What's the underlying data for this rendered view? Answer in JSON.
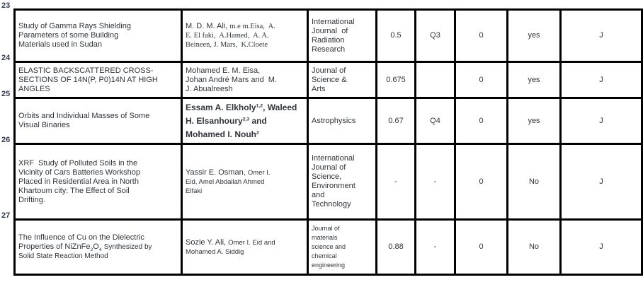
{
  "theme": {
    "background": "#ffffff",
    "text_color": "#30343a",
    "border_color": "#000000",
    "row_number_color": "#333b52"
  },
  "table": {
    "column_keys": [
      "title",
      "authors",
      "journal",
      "impact_factor",
      "quartile",
      "citations",
      "indexed",
      "pub_type"
    ],
    "rows": [
      {
        "num": "23",
        "title": [
          {
            "t": "Study of Gamma Rays Shielding\nParameters of some Building\nMaterials used in Sudan",
            "f": "s"
          }
        ],
        "authors": [
          {
            "t": "M. D. M. Ali, ",
            "f": "s"
          },
          {
            "t": "m.e m.Eisa,  A.\nE. El faki,  A.Hamed,  A. A.\nBeineen, J. Mars,  K.Cloete",
            "f": "sf"
          }
        ],
        "journal": [
          {
            "t": "International\nJournal  of\nRadiation\nResearch",
            "f": "s"
          }
        ],
        "impact_factor": "0.5",
        "quartile": "Q3",
        "citations": "0",
        "indexed": "yes",
        "pub_type": "J"
      },
      {
        "num": "24",
        "title": [
          {
            "t": "ELASTIC BACKSCATTERED CROSS-\nSECTIONS OF 14N(P, P0)14N AT HIGH\nANGLES",
            "f": "s"
          }
        ],
        "authors": [
          {
            "t": "Mohamed E. M. Eisa,\nJohan André Mars and  M.\nJ. Abualreesh",
            "f": "s"
          }
        ],
        "journal": [
          {
            "t": "Journal of\nScience &\nArts",
            "f": "s"
          }
        ],
        "impact_factor": "0.675",
        "quartile": "",
        "citations": "0",
        "indexed": "yes",
        "pub_type": "J"
      },
      {
        "num": "25",
        "title": [
          {
            "t": "Orbits and Individual Masses of Some\nVisual Binaries",
            "f": "s"
          }
        ],
        "authors": [
          {
            "t": "Essam A. Elkholy",
            "f": "b"
          },
          {
            "t": "1,2",
            "f": "b",
            "sup": true
          },
          {
            "t": ", Waleed\nH. Elsanhoury",
            "f": "b"
          },
          {
            "t": "2,3",
            "f": "b",
            "sup": true
          },
          {
            "t": " and\nMohamed I. Nouh",
            "f": "b"
          },
          {
            "t": "2",
            "f": "b",
            "sup": true
          }
        ],
        "journal": [
          {
            "t": "Astrophysics",
            "f": "s"
          }
        ],
        "impact_factor": "0.67",
        "quartile": "Q4",
        "citations": "0",
        "indexed": "yes",
        "pub_type": "J"
      },
      {
        "num": "26",
        "title": [
          {
            "t": "XRF  Study of Polluted Soils in the\nVicinity of Cars Batteries Workshop\nPlaced in Residential Area in North\nKhartoum city: The Effect of Soil\nDrifting.",
            "f": "s"
          }
        ],
        "authors": [
          {
            "t": "Yassir E. Osman, ",
            "f": "s"
          },
          {
            "t": "Omer I.\nEid, Amel Abdallah Ahmed\nElfaki",
            "f": "sm"
          }
        ],
        "journal": [
          {
            "t": "International\nJournal of\nScience,\nEnvironment\nand\nTechnology",
            "f": "s"
          }
        ],
        "impact_factor": "-",
        "quartile": "-",
        "citations": "0",
        "indexed": "No",
        "pub_type": "J"
      },
      {
        "num": "27",
        "title": [
          {
            "t": "The Influence of Cu on the Dielectric\nProperties of NiZnFe",
            "f": "s"
          },
          {
            "t": "2",
            "f": "s",
            "sub": true
          },
          {
            "t": "O",
            "f": "s"
          },
          {
            "t": "4",
            "f": "s",
            "sub": true
          },
          {
            "t": " ",
            "f": "s"
          },
          {
            "t": "Synthesized by\nSolid State Reaction Method",
            "f": "t10"
          }
        ],
        "authors": [
          {
            "t": "Sozie Y. Ali, ",
            "f": "s"
          },
          {
            "t": "Omer I. Eid and\nMohamed A. Siddig",
            "f": "sm"
          }
        ],
        "journal": [
          {
            "t": "Journal of\nmaterials\nscience and\nchemical\nengineering",
            "f": "xs"
          }
        ],
        "impact_factor": "0.88",
        "quartile": "-",
        "citations": "0",
        "indexed": "No",
        "pub_type": "J"
      }
    ]
  }
}
